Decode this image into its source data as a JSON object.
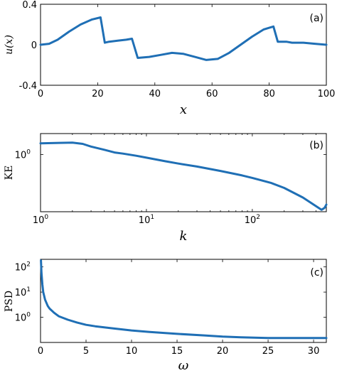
{
  "colors": {
    "line": "#1f6fb5",
    "axis": "#000000"
  },
  "chart_data": [
    {
      "type": "line",
      "panel_label": "(a)",
      "xlabel": "x",
      "ylabel": "u(x)",
      "xlim": [
        0,
        100
      ],
      "ylim": [
        -0.4,
        0.4
      ],
      "x_ticks": [
        0,
        20,
        40,
        60,
        80,
        100
      ],
      "x_tick_labels": [
        "0",
        "20",
        "40",
        "60",
        "80",
        "100"
      ],
      "y_ticks": [
        -0.4,
        0,
        0.4
      ],
      "y_tick_labels": [
        "-0.4",
        "0",
        "0.4"
      ],
      "series": [
        {
          "x": [
            0,
            3,
            6,
            10,
            14,
            18,
            21,
            22.5,
            24,
            27,
            30,
            32,
            34,
            38,
            42,
            46,
            50,
            54,
            58,
            62,
            66,
            70,
            74,
            78,
            81.5,
            83,
            84,
            86,
            88,
            92,
            96,
            100
          ],
          "y": [
            0,
            0.01,
            0.05,
            0.13,
            0.2,
            0.25,
            0.27,
            0.02,
            0.03,
            0.04,
            0.05,
            0.06,
            -0.13,
            -0.12,
            -0.1,
            -0.08,
            -0.09,
            -0.12,
            -0.15,
            -0.14,
            -0.08,
            0.0,
            0.08,
            0.15,
            0.18,
            0.03,
            0.03,
            0.03,
            0.02,
            0.02,
            0.01,
            0.0
          ]
        }
      ]
    },
    {
      "type": "line",
      "panel_label": "(b)",
      "xlabel": "k",
      "ylabel": "KE",
      "xscale": "log",
      "yscale": "log",
      "xlim": [
        1,
        500
      ],
      "ylim": [
        0.15,
        2.0
      ],
      "x_ticks": [
        1,
        10,
        100
      ],
      "x_tick_labels": [
        "10",
        "10",
        "10"
      ],
      "x_tick_exponents": [
        "0",
        "1",
        "2"
      ],
      "y_ticks": [
        1
      ],
      "y_tick_labels": [
        "10"
      ],
      "y_tick_exponents": [
        "0"
      ],
      "series": [
        {
          "x": [
            1,
            1.5,
            2,
            2.5,
            3,
            4,
            5,
            6,
            8,
            10,
            15,
            20,
            30,
            50,
            80,
            100,
            150,
            200,
            300,
            400,
            450,
            480,
            500
          ],
          "y": [
            1.45,
            1.47,
            1.48,
            1.42,
            1.3,
            1.17,
            1.07,
            1.03,
            0.96,
            0.9,
            0.8,
            0.74,
            0.67,
            0.58,
            0.5,
            0.46,
            0.39,
            0.33,
            0.24,
            0.18,
            0.16,
            0.17,
            0.19
          ]
        }
      ]
    },
    {
      "type": "line",
      "panel_label": "(c)",
      "xlabel": "ω",
      "ylabel": "PSD",
      "yscale": "log",
      "xlim": [
        0,
        31.4
      ],
      "ylim": [
        0.1,
        200
      ],
      "x_ticks": [
        0,
        5,
        10,
        15,
        20,
        25,
        30
      ],
      "x_tick_labels": [
        "0",
        "5",
        "10",
        "15",
        "20",
        "25",
        "30"
      ],
      "y_ticks": [
        1,
        10,
        100
      ],
      "y_tick_labels": [
        "10",
        "10",
        "10"
      ],
      "y_tick_exponents": [
        "0",
        "1",
        "2"
      ],
      "series": [
        {
          "x": [
            0.05,
            0.1,
            0.2,
            0.3,
            0.5,
            0.8,
            1,
            1.5,
            2,
            3,
            4,
            5,
            6,
            8,
            10,
            12,
            15,
            18,
            20,
            22,
            25,
            28,
            31.4
          ],
          "y": [
            180,
            60,
            20,
            10,
            5,
            2.8,
            2.2,
            1.5,
            1.1,
            0.8,
            0.62,
            0.5,
            0.44,
            0.36,
            0.3,
            0.26,
            0.22,
            0.19,
            0.17,
            0.16,
            0.15,
            0.15,
            0.15
          ]
        }
      ]
    }
  ]
}
